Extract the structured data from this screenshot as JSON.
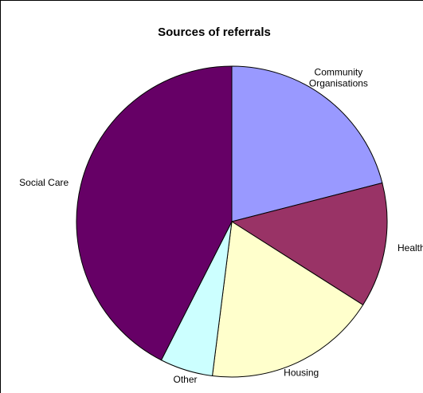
{
  "chart_data": {
    "type": "pie",
    "title": "Sources of referrals",
    "slices": [
      {
        "label": [
          "Community",
          "Organisations"
        ],
        "value": 21,
        "color": "#9999FF"
      },
      {
        "label": [
          "Health"
        ],
        "value": 13,
        "color": "#993366"
      },
      {
        "label": [
          "Housing"
        ],
        "value": 18,
        "color": "#FFFFCC"
      },
      {
        "label": [
          "Other"
        ],
        "value": 5.5,
        "color": "#CCFFFF"
      },
      {
        "label": [
          "Social Care"
        ],
        "value": 42.5,
        "color": "#660066"
      }
    ],
    "start": "12 o'clock",
    "direction": "clockwise",
    "legend": "none"
  }
}
